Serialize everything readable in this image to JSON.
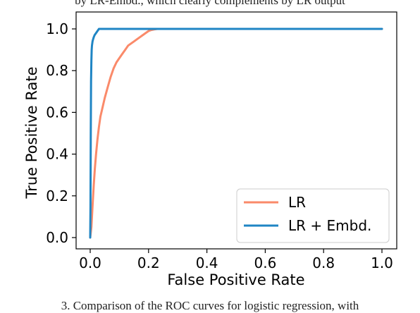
{
  "caption_top": "by LR-Embd., which clearly complements by LR output",
  "caption_bottom": "3.   Comparison of the ROC curves for logistic regression, with",
  "chart_data": {
    "type": "line",
    "xlabel": "False Positive Rate",
    "ylabel": "True Positive Rate",
    "xlim": [
      0.0,
      1.0
    ],
    "ylim": [
      0.0,
      1.0
    ],
    "xticks": [
      "0.0",
      "0.2",
      "0.4",
      "0.6",
      "0.8",
      "1.0"
    ],
    "yticks": [
      "0.0",
      "0.2",
      "0.4",
      "0.6",
      "0.8",
      "1.0"
    ],
    "grid": false,
    "legend_position": "bottom-right",
    "series": [
      {
        "name": "LR",
        "color": "#FA8A6A",
        "x": [
          0.0,
          0.004,
          0.008,
          0.012,
          0.016,
          0.02,
          0.025,
          0.03,
          0.035,
          0.04,
          0.05,
          0.06,
          0.07,
          0.08,
          0.09,
          0.1,
          0.11,
          0.12,
          0.13,
          0.14,
          0.15,
          0.16,
          0.17,
          0.18,
          0.19,
          0.2,
          0.21,
          0.22,
          0.23,
          0.25,
          1.0
        ],
        "y": [
          0.0,
          0.05,
          0.15,
          0.25,
          0.33,
          0.4,
          0.47,
          0.53,
          0.58,
          0.61,
          0.67,
          0.72,
          0.77,
          0.81,
          0.84,
          0.86,
          0.88,
          0.9,
          0.92,
          0.93,
          0.94,
          0.95,
          0.96,
          0.97,
          0.98,
          0.99,
          0.995,
          0.998,
          1.0,
          1.0,
          1.0
        ]
      },
      {
        "name": "LR + Embd.",
        "color": "#1F85C4",
        "x": [
          0.0,
          0.001,
          0.002,
          0.003,
          0.004,
          0.005,
          0.006,
          0.008,
          0.01,
          0.012,
          0.015,
          0.02,
          0.025,
          0.03,
          0.035,
          0.04,
          1.0
        ],
        "y": [
          0.0,
          0.15,
          0.5,
          0.75,
          0.85,
          0.9,
          0.92,
          0.94,
          0.95,
          0.96,
          0.97,
          0.98,
          0.99,
          1.0,
          1.0,
          1.0,
          1.0
        ]
      }
    ]
  }
}
